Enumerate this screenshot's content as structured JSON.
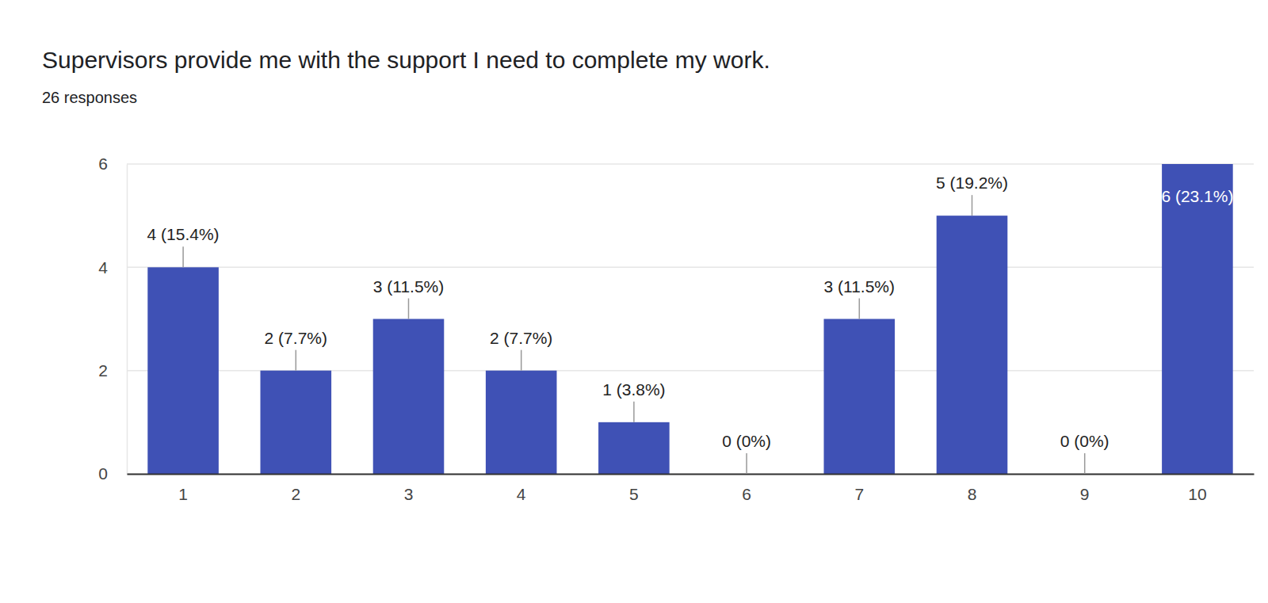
{
  "chart_data": {
    "type": "bar",
    "title": "Supervisors provide me with the support I need to complete my work.",
    "subtitle": "26 responses",
    "categories": [
      "1",
      "2",
      "3",
      "4",
      "5",
      "6",
      "7",
      "8",
      "9",
      "10"
    ],
    "values": [
      4,
      2,
      3,
      2,
      1,
      0,
      3,
      5,
      0,
      6
    ],
    "value_labels": [
      "4 (15.4%)",
      "2 (7.7%)",
      "3 (11.5%)",
      "2 (7.7%)",
      "1 (3.8%)",
      "0 (0%)",
      "3 (11.5%)",
      "5 (19.2%)",
      "0 (0%)",
      "6 (23.1%)"
    ],
    "color": "#3f51b5",
    "ylim": [
      0,
      6
    ],
    "yticks": [
      0,
      2,
      4,
      6
    ],
    "grid": true,
    "data_labels": true
  }
}
